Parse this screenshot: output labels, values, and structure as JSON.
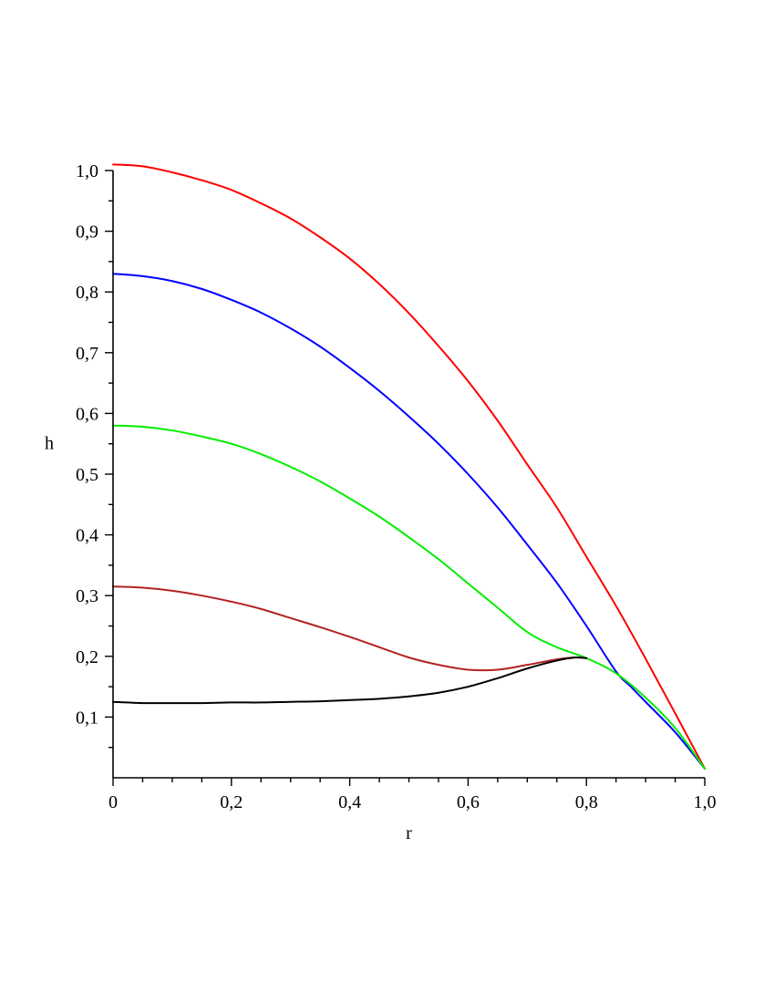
{
  "chart_data": {
    "type": "line",
    "title": "",
    "xlabel": "r",
    "ylabel": "h",
    "xlim": [
      0,
      1.0
    ],
    "ylim": [
      0,
      1.0
    ],
    "x_ticks": [
      0,
      0.2,
      0.4,
      0.6,
      0.8,
      1.0
    ],
    "x_tick_labels": [
      "0",
      "0,2",
      "0,4",
      "0,6",
      "0,8",
      "1,0"
    ],
    "y_ticks": [
      0.1,
      0.2,
      0.3,
      0.4,
      0.5,
      0.6,
      0.7,
      0.8,
      0.9,
      1.0
    ],
    "y_tick_labels": [
      "0,1",
      "0,2",
      "0,3",
      "0,4",
      "0,5",
      "0,6",
      "0,7",
      "0,8",
      "0,9",
      "1,0"
    ],
    "grid": false,
    "legend": false,
    "series": [
      {
        "color": "#ff0000",
        "x": [
          0,
          0.05,
          0.1,
          0.15,
          0.2,
          0.25,
          0.3,
          0.35,
          0.4,
          0.45,
          0.5,
          0.55,
          0.6,
          0.65,
          0.7,
          0.75,
          0.8,
          0.85,
          0.9,
          0.95,
          1.0
        ],
        "y": [
          1.01,
          1.007,
          0.997,
          0.984,
          0.968,
          0.946,
          0.921,
          0.89,
          0.855,
          0.813,
          0.765,
          0.711,
          0.653,
          0.588,
          0.516,
          0.445,
          0.364,
          0.283,
          0.196,
          0.106,
          0.015
        ]
      },
      {
        "color": "#0000ff",
        "x": [
          0,
          0.05,
          0.1,
          0.15,
          0.2,
          0.25,
          0.3,
          0.35,
          0.4,
          0.45,
          0.5,
          0.55,
          0.6,
          0.65,
          0.7,
          0.75,
          0.8,
          0.85,
          0.875,
          0.9,
          0.95,
          1.0
        ],
        "y": [
          0.83,
          0.826,
          0.818,
          0.805,
          0.787,
          0.766,
          0.74,
          0.71,
          0.675,
          0.637,
          0.595,
          0.55,
          0.5,
          0.445,
          0.384,
          0.321,
          0.25,
          0.175,
          0.15,
          0.125,
          0.075,
          0.015
        ]
      },
      {
        "color": "#00ee00",
        "x": [
          0,
          0.05,
          0.1,
          0.15,
          0.2,
          0.25,
          0.3,
          0.35,
          0.4,
          0.45,
          0.5,
          0.55,
          0.6,
          0.65,
          0.7,
          0.75,
          0.8,
          0.85,
          0.9,
          0.95,
          1.0
        ],
        "y": [
          0.58,
          0.578,
          0.572,
          0.562,
          0.55,
          0.533,
          0.512,
          0.488,
          0.46,
          0.43,
          0.396,
          0.36,
          0.32,
          0.28,
          0.24,
          0.215,
          0.197,
          0.172,
          0.132,
          0.082,
          0.015
        ]
      },
      {
        "color": "#b22222",
        "x": [
          0,
          0.05,
          0.1,
          0.15,
          0.2,
          0.25,
          0.3,
          0.35,
          0.4,
          0.45,
          0.5,
          0.55,
          0.6,
          0.65,
          0.7,
          0.75,
          0.78,
          0.8
        ],
        "y": [
          0.315,
          0.313,
          0.308,
          0.3,
          0.29,
          0.278,
          0.263,
          0.248,
          0.232,
          0.215,
          0.198,
          0.186,
          0.178,
          0.178,
          0.186,
          0.195,
          0.198,
          0.197
        ]
      },
      {
        "color": "#000000",
        "x": [
          0,
          0.05,
          0.1,
          0.15,
          0.2,
          0.25,
          0.3,
          0.35,
          0.4,
          0.45,
          0.5,
          0.55,
          0.6,
          0.65,
          0.7,
          0.75,
          0.78,
          0.8
        ],
        "y": [
          0.125,
          0.123,
          0.123,
          0.123,
          0.124,
          0.124,
          0.125,
          0.126,
          0.128,
          0.13,
          0.134,
          0.14,
          0.15,
          0.164,
          0.18,
          0.193,
          0.198,
          0.197
        ]
      }
    ]
  }
}
